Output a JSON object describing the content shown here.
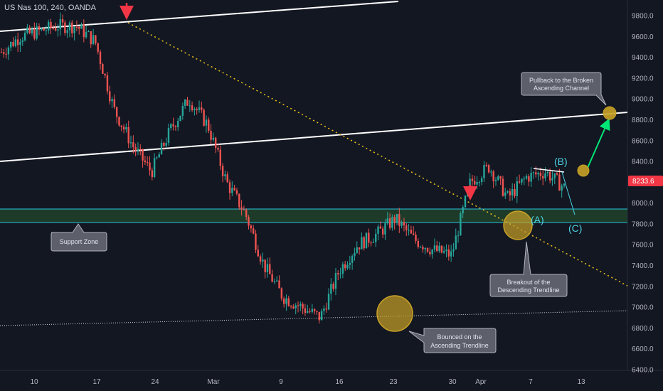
{
  "header": {
    "title": "US Nas 100, 240, OANDA"
  },
  "colors": {
    "up": "#26a69a",
    "down": "#ef5350",
    "zone": "#1e4d2b",
    "zone_line": "#26c6da",
    "last_price": "#f23645"
  },
  "chart_data": {
    "type": "candlestick",
    "y_ticks": [
      "9800.0",
      "9600.0",
      "9400.0",
      "9200.0",
      "9000.0",
      "8800.0",
      "8600.0",
      "8400.0",
      "8200.0",
      "8000.0",
      "7800.0",
      "7600.0",
      "7400.0",
      "7200.0",
      "7000.0",
      "6800.0",
      "6600.0",
      "6400.0"
    ],
    "y_range": [
      6400,
      9800
    ],
    "x_ticks": [
      "10",
      "17",
      "24",
      "Mar",
      "9",
      "16",
      "23",
      "30",
      "Apr",
      "7",
      "13"
    ],
    "last_price": "8233.6",
    "anchor_prices": [
      9450,
      9600,
      9650,
      9700,
      9700,
      9550,
      8900,
      8550,
      8300,
      8700,
      9000,
      8750,
      8200,
      7900,
      7400,
      7100,
      7000,
      6900,
      7350,
      7600,
      7700,
      7850,
      7650,
      7550,
      7500,
      8200,
      8350,
      8050,
      8250,
      8300,
      8150
    ],
    "support_zone": {
      "top": 7960,
      "bottom": 7820
    },
    "wave_labels": [
      "(A)",
      "(B)",
      "(C)"
    ],
    "callouts": {
      "support": "Support Zone",
      "bounce": [
        "Bounced on the",
        "Ascending Trendline"
      ],
      "breakout": [
        "Breakout of the",
        "Descending Trendline"
      ],
      "pullback": [
        "Pullback to the Broken",
        "Ascending Channel"
      ]
    }
  }
}
